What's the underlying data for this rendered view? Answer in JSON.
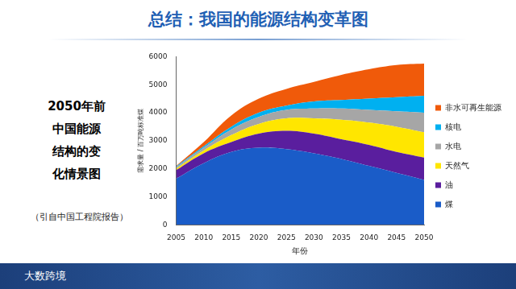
{
  "title": "总结：我国的能源结构变革图",
  "side_text": [
    "2050年前",
    "中国能源",
    "结构的变",
    "化情景图"
  ],
  "citation": "（引自中国工程院报告）",
  "footer": "大数跨境",
  "chart_data": {
    "type": "area",
    "stacked": true,
    "x": [
      2005,
      2010,
      2015,
      2020,
      2025,
      2030,
      2035,
      2040,
      2045,
      2050
    ],
    "xlim": [
      2005,
      2050
    ],
    "xticks": [
      2005,
      2010,
      2015,
      2020,
      2025,
      2030,
      2035,
      2040,
      2045,
      2050
    ],
    "ylim": [
      0,
      6000
    ],
    "yticks": [
      0,
      1000,
      2000,
      3000,
      4000,
      5000,
      6000
    ],
    "x_label": "年份",
    "y_label": "需求量 / 百万吨标准煤",
    "grid": false,
    "legend": "right",
    "series": [
      {
        "name": "煤",
        "color": "#1a5cc8",
        "values": [
          1650,
          2200,
          2600,
          2750,
          2700,
          2550,
          2350,
          2100,
          1850,
          1600
        ]
      },
      {
        "name": "油",
        "color": "#5a1e9e",
        "values": [
          300,
          350,
          350,
          500,
          650,
          700,
          700,
          750,
          750,
          800
        ]
      },
      {
        "name": "天然气",
        "color": "#ffe600",
        "values": [
          50,
          100,
          250,
          350,
          450,
          550,
          700,
          800,
          900,
          900
        ]
      },
      {
        "name": "水电",
        "color": "#a6a6a6",
        "values": [
          50,
          100,
          200,
          250,
          300,
          350,
          400,
          450,
          550,
          700
        ]
      },
      {
        "name": "核电",
        "color": "#00b0f0",
        "values": [
          30,
          50,
          100,
          150,
          150,
          250,
          300,
          400,
          500,
          600
        ]
      },
      {
        "name": "非水可再生能源",
        "color": "#f05a0a",
        "values": [
          20,
          150,
          400,
          500,
          600,
          700,
          900,
          1050,
          1150,
          1150
        ]
      }
    ]
  }
}
